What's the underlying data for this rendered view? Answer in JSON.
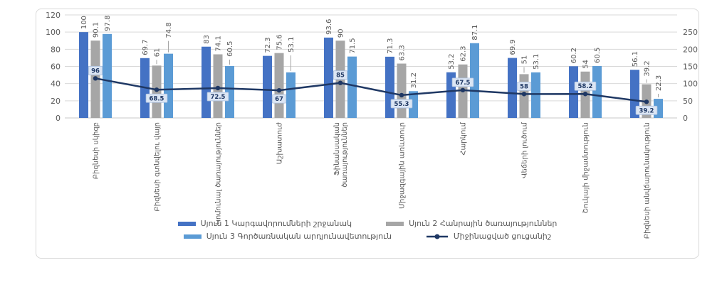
{
  "chart_data": {
    "type": "combo-bar-line",
    "title": "",
    "categories": [
      "Բիզնեսի սկիզբ",
      "Բիզնեսի գտնվելու վայր",
      "Կոմունալ ծառայություններ",
      "Աշխատուժ",
      "Ֆինանսական\nծառայություններ",
      "Միջազգային առևտուր",
      "Հարկում",
      "Վեճերի լուծում",
      "Շուկայի միջամտություն",
      "Բիզնեսի անվճարունակություն"
    ],
    "left_axis": {
      "min": 0,
      "max": 120,
      "step": 20,
      "ticks": [
        "0",
        "20",
        "40",
        "60",
        "80",
        "100",
        "120"
      ]
    },
    "right_axis": {
      "min": 0,
      "max": 250,
      "step": 50,
      "ticks": [
        "0",
        "50",
        "100",
        "150",
        "200",
        "250"
      ]
    },
    "grid_on": true,
    "grid_color": "#D9D9D9",
    "text_color": "#595959",
    "legend_position": "bottom",
    "series": [
      {
        "name": "Սյուն 1 Կարգավորումների շրջանակ",
        "type": "bar",
        "axis": "left",
        "color": "#4472C4",
        "values": [
          100,
          69.7,
          83,
          72.3,
          93.6,
          71.3,
          53.2,
          69.9,
          60.2,
          56.1
        ],
        "labels": [
          "100",
          "69.7",
          "83",
          "72.3",
          "93.6",
          "71.3",
          "53.2",
          "69.9",
          "60.2",
          "56.1"
        ],
        "label_lifts": [
          0,
          0,
          0,
          0,
          0,
          0,
          0,
          0,
          0,
          0
        ]
      },
      {
        "name": "Սյուն 2 Հանրային ծառայություններ",
        "type": "bar",
        "axis": "left",
        "color": "#A6A6A6",
        "values": [
          90.1,
          61,
          74.1,
          75.6,
          90,
          63.3,
          62.3,
          51,
          54,
          39.2
        ],
        "labels": [
          "90.1",
          "61",
          "74.1",
          "75.6",
          "90",
          "63.3",
          "62.3",
          "51",
          "54",
          "39.2"
        ],
        "label_lifts": [
          0,
          8,
          0,
          0,
          0,
          0,
          0,
          10,
          0,
          7
        ]
      },
      {
        "name": "Սյուն 3 Գործառնական արդյունավետություն",
        "type": "bar",
        "axis": "left",
        "color": "#5B9BD5",
        "values": [
          97.8,
          74.8,
          60.5,
          53.1,
          71.5,
          31.2,
          87.1,
          53.1,
          60.5,
          22.3
        ],
        "labels": [
          "97.8",
          "74.8",
          "60.5",
          "53.1",
          "71.5",
          "31.2",
          "87.1",
          "53.1",
          "60.5",
          "22.3"
        ],
        "label_lifts": [
          0,
          18,
          9,
          24,
          0,
          0,
          0,
          0,
          0,
          7
        ]
      },
      {
        "name": "Միջինացված ցուցանիշ",
        "type": "line",
        "axis": "right",
        "color": "#1F3864",
        "values": [
          96,
          68.5,
          72.5,
          67,
          85,
          55.3,
          67.5,
          58,
          58.2,
          39.2
        ],
        "labels": [
          "96",
          "68.5",
          "72.5",
          "67",
          "85",
          "55.3",
          "67.5",
          "58",
          "58.2",
          "39.2"
        ],
        "label_above": [
          true,
          false,
          false,
          false,
          true,
          false,
          true,
          true,
          true,
          false
        ],
        "label_box": {
          "bg": "#DCE6F4",
          "border": "#ABC0DE",
          "text_color": "#1F3864"
        }
      }
    ]
  }
}
